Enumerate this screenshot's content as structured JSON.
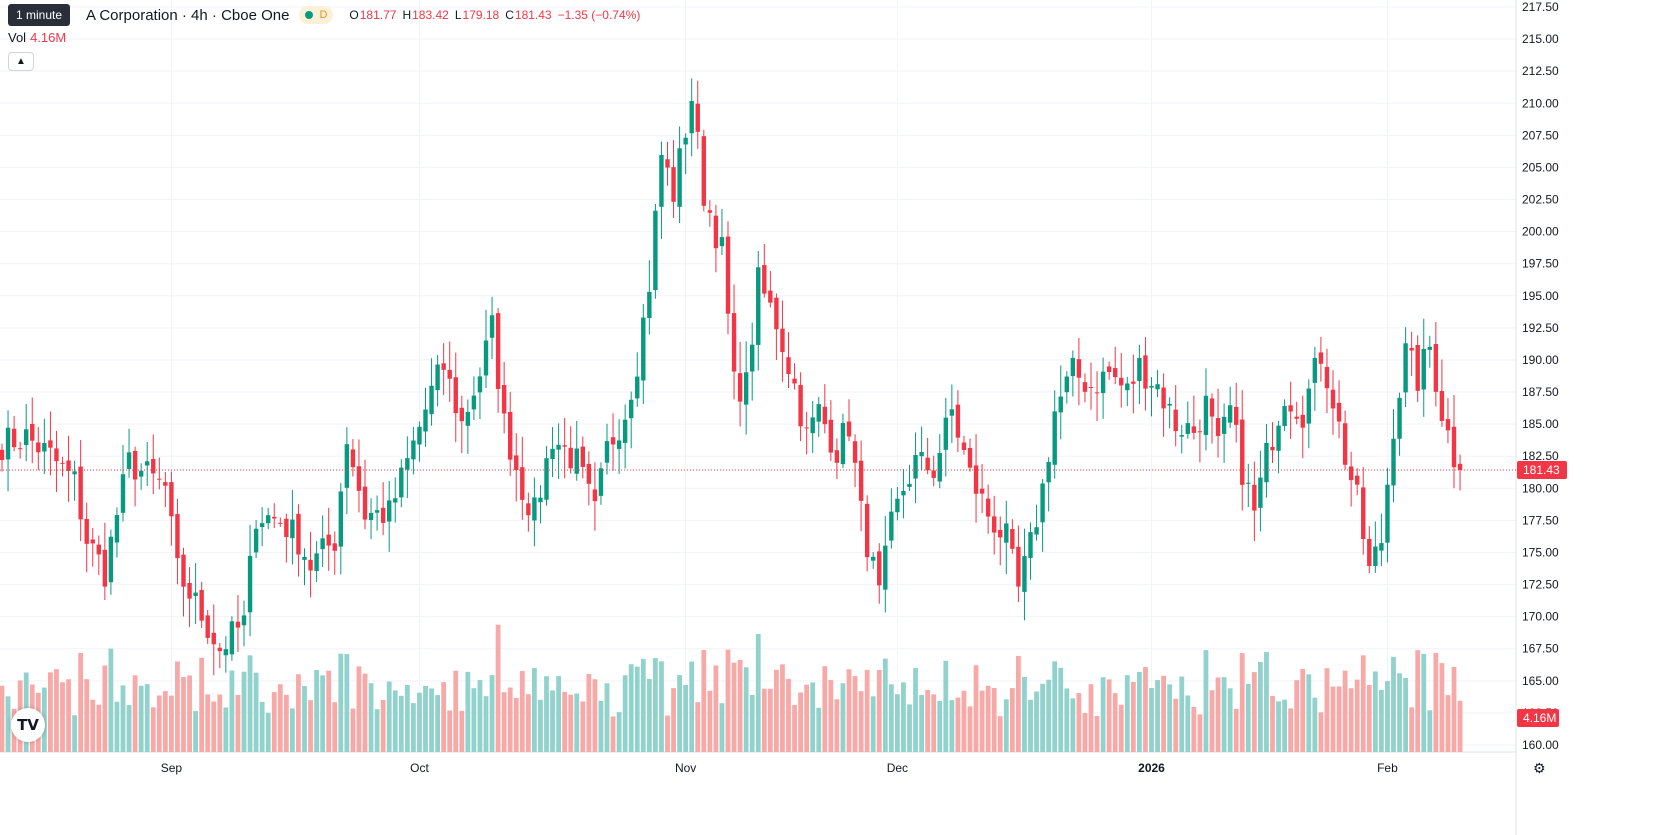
{
  "header": {
    "tooltip": "1 minute",
    "symbol_title": "A Corporation · 4h · Cboe One",
    "market_badge": "D",
    "ohlc": {
      "o_label": "O",
      "o_value": "181.77",
      "h_label": "H",
      "h_value": "183.42",
      "l_label": "L",
      "l_value": "179.18",
      "c_label": "C",
      "c_value": "181.43",
      "change": "−1.35 (−0.74%)"
    },
    "volume_label": "Vol",
    "volume_value": "4.16M"
  },
  "colors": {
    "up": "#089981",
    "down": "#f23645",
    "up_volume": "#92d2cc",
    "down_volume": "#f7a9a7",
    "grid": "#f0f3fa"
  },
  "icons": {
    "collapse": "chevron-up-icon",
    "logo": "tradingview-logo",
    "settings": "gear-icon"
  },
  "chart_data": {
    "type": "candlestick",
    "y_axis": {
      "min": 158.75,
      "max": 217.5,
      "position": "right",
      "ticks": [
        "160.00",
        "162.50",
        "165.00",
        "167.50",
        "170.00",
        "172.50",
        "175.00",
        "177.50",
        "180.00",
        "182.50",
        "185.00",
        "187.50",
        "190.00",
        "192.50",
        "195.00",
        "197.50",
        "200.00",
        "202.50",
        "205.00",
        "207.50",
        "210.00",
        "212.50",
        "215.00",
        "217.50"
      ]
    },
    "x_axis": {
      "labels": [
        "Sep",
        "Oct",
        "Nov",
        "Dec",
        "2026",
        "Feb"
      ],
      "label_bar_index": [
        28,
        69,
        113,
        148,
        190,
        229
      ]
    },
    "grid": true,
    "last_price": "181.43",
    "last_price_value": 181.43,
    "last_volume": "4.16M",
    "anchors": [
      [
        0,
        183.5
      ],
      [
        4,
        184
      ],
      [
        8,
        182.5
      ],
      [
        12,
        180.5
      ],
      [
        14,
        176
      ],
      [
        17,
        173.5
      ],
      [
        19,
        178
      ],
      [
        21,
        182
      ],
      [
        24,
        181
      ],
      [
        27,
        180
      ],
      [
        29,
        173.5
      ],
      [
        32,
        171
      ],
      [
        36,
        167.5
      ],
      [
        40,
        169.5
      ],
      [
        42,
        178
      ],
      [
        46,
        177.5
      ],
      [
        49,
        176
      ],
      [
        51,
        174
      ],
      [
        55,
        176
      ],
      [
        57,
        184
      ],
      [
        60,
        178
      ],
      [
        64,
        178
      ],
      [
        67,
        182
      ],
      [
        71,
        187.5
      ],
      [
        73,
        189.5
      ],
      [
        76,
        185
      ],
      [
        79,
        189
      ],
      [
        81,
        192.5
      ],
      [
        83,
        185
      ],
      [
        86,
        180
      ],
      [
        88,
        178
      ],
      [
        91,
        184
      ],
      [
        95,
        182
      ],
      [
        98,
        178
      ],
      [
        100,
        183
      ],
      [
        103,
        186
      ],
      [
        105,
        190
      ],
      [
        107,
        196
      ],
      [
        109,
        206
      ],
      [
        111,
        203
      ],
      [
        114,
        210.5
      ],
      [
        116,
        203
      ],
      [
        119,
        198.5
      ],
      [
        121,
        188
      ],
      [
        123,
        188
      ],
      [
        125,
        196
      ],
      [
        128,
        193
      ],
      [
        131,
        188
      ],
      [
        133,
        184
      ],
      [
        135,
        186
      ],
      [
        138,
        183
      ],
      [
        140,
        185
      ],
      [
        142,
        178
      ],
      [
        145,
        171.5
      ],
      [
        147,
        177
      ],
      [
        149,
        180
      ],
      [
        151,
        182
      ],
      [
        154,
        181.5
      ],
      [
        157,
        186
      ],
      [
        160,
        181
      ],
      [
        163,
        178
      ],
      [
        166,
        176
      ],
      [
        168,
        172
      ],
      [
        170,
        175.5
      ],
      [
        172,
        180
      ],
      [
        174,
        186
      ],
      [
        177,
        189
      ],
      [
        180,
        188
      ],
      [
        183,
        189
      ],
      [
        186,
        187.5
      ],
      [
        188,
        189.5
      ],
      [
        191,
        188
      ],
      [
        194,
        185
      ],
      [
        197,
        184.5
      ],
      [
        199,
        186.5
      ],
      [
        201,
        183
      ],
      [
        203,
        186
      ],
      [
        205,
        181.5
      ],
      [
        207,
        178
      ],
      [
        209,
        182.5
      ],
      [
        212,
        187.5
      ],
      [
        215,
        186
      ],
      [
        218,
        190.5
      ],
      [
        220,
        187
      ],
      [
        222,
        182.5
      ],
      [
        224,
        179
      ],
      [
        226,
        173.5
      ],
      [
        228,
        176
      ],
      [
        230,
        185
      ],
      [
        232,
        190.5
      ],
      [
        234,
        188.5
      ],
      [
        236,
        191
      ],
      [
        238,
        186
      ],
      [
        240,
        182.5
      ],
      [
        241,
        181.43
      ]
    ],
    "candle_count": 242
  }
}
